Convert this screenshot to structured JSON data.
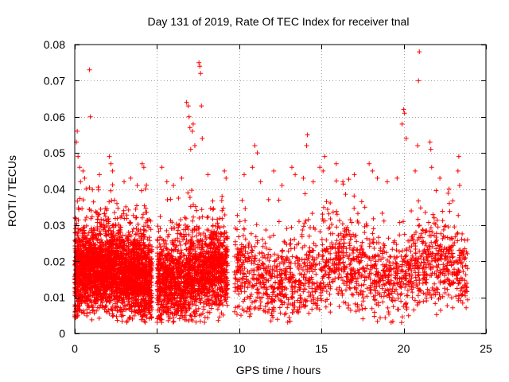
{
  "chart_data": {
    "type": "scatter",
    "title": "Day 131 of 2019, Rate Of TEC Index for receiver tnal",
    "xlabel": "GPS time / hours",
    "ylabel": "ROTI / TECUs",
    "xlim": [
      0,
      25
    ],
    "ylim": [
      0,
      0.08
    ],
    "xticks": [
      0,
      5,
      10,
      15,
      20,
      25
    ],
    "xtick_labels": [
      "0",
      "5",
      "10",
      "15",
      "20",
      "25"
    ],
    "yticks": [
      0,
      0.01,
      0.02,
      0.03,
      0.04,
      0.05,
      0.06,
      0.07,
      0.08
    ],
    "ytick_labels": [
      "0",
      "0.01",
      "0.02",
      "0.03",
      "0.04",
      "0.05",
      "0.06",
      "0.07",
      "0.08"
    ],
    "grid": true,
    "marker": "+",
    "color": "#ff0000",
    "data_coverage_hours": [
      [
        0,
        4.7
      ],
      [
        5.0,
        9.3
      ],
      [
        9.7,
        23.9
      ]
    ],
    "series": [
      {
        "name": "ROTI",
        "points": [
          [
            0.1,
            0.053
          ],
          [
            0.15,
            0.056
          ],
          [
            0.2,
            0.049
          ],
          [
            0.3,
            0.046
          ],
          [
            0.35,
            0.042
          ],
          [
            0.5,
            0.045
          ],
          [
            0.6,
            0.043
          ],
          [
            0.9,
            0.073
          ],
          [
            0.95,
            0.06
          ],
          [
            1.5,
            0.044
          ],
          [
            2.1,
            0.049
          ],
          [
            2.2,
            0.047
          ],
          [
            2.3,
            0.045
          ],
          [
            3.0,
            0.042
          ],
          [
            3.4,
            0.043
          ],
          [
            3.8,
            0.041
          ],
          [
            4.1,
            0.047
          ],
          [
            4.2,
            0.046
          ],
          [
            4.3,
            0.04
          ],
          [
            5.3,
            0.046
          ],
          [
            5.6,
            0.042
          ],
          [
            6.0,
            0.041
          ],
          [
            6.5,
            0.043
          ],
          [
            6.8,
            0.064
          ],
          [
            6.9,
            0.063
          ],
          [
            6.95,
            0.06
          ],
          [
            7.0,
            0.057
          ],
          [
            7.05,
            0.051
          ],
          [
            7.15,
            0.056
          ],
          [
            7.2,
            0.058
          ],
          [
            7.3,
            0.052
          ],
          [
            7.55,
            0.075
          ],
          [
            7.6,
            0.074
          ],
          [
            7.65,
            0.072
          ],
          [
            7.7,
            0.063
          ],
          [
            7.75,
            0.054
          ],
          [
            8.1,
            0.044
          ],
          [
            9.1,
            0.045
          ],
          [
            9.2,
            0.043
          ],
          [
            10.3,
            0.044
          ],
          [
            10.8,
            0.046
          ],
          [
            10.95,
            0.052
          ],
          [
            11.1,
            0.05
          ],
          [
            11.3,
            0.042
          ],
          [
            12.1,
            0.045
          ],
          [
            12.6,
            0.041
          ],
          [
            13.2,
            0.046
          ],
          [
            13.4,
            0.044
          ],
          [
            13.9,
            0.043
          ],
          [
            14.1,
            0.052
          ],
          [
            14.15,
            0.055
          ],
          [
            14.5,
            0.042
          ],
          [
            14.9,
            0.046
          ],
          [
            15.1,
            0.045
          ],
          [
            15.2,
            0.049
          ],
          [
            15.9,
            0.047
          ],
          [
            16.3,
            0.042
          ],
          [
            17.0,
            0.044
          ],
          [
            17.9,
            0.047
          ],
          [
            18.1,
            0.045
          ],
          [
            18.4,
            0.043
          ],
          [
            19.0,
            0.042
          ],
          [
            19.6,
            0.043
          ],
          [
            19.9,
            0.058
          ],
          [
            20.0,
            0.062
          ],
          [
            20.05,
            0.061
          ],
          [
            20.15,
            0.054
          ],
          [
            20.7,
            0.045
          ],
          [
            20.85,
            0.052
          ],
          [
            20.9,
            0.07
          ],
          [
            20.95,
            0.078
          ],
          [
            21.6,
            0.053
          ],
          [
            21.65,
            0.051
          ],
          [
            21.7,
            0.046
          ],
          [
            22.2,
            0.043
          ],
          [
            23.3,
            0.045
          ],
          [
            23.35,
            0.049
          ],
          [
            23.4,
            0.041
          ]
        ]
      }
    ]
  }
}
